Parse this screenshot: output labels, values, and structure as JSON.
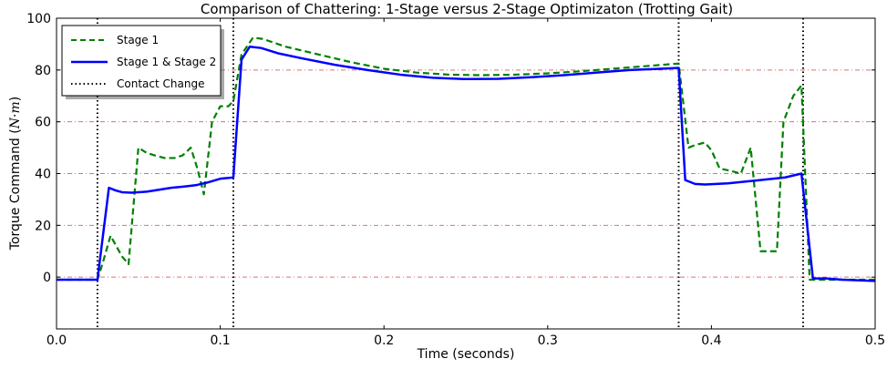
{
  "chart_data": {
    "type": "line",
    "title": "Comparison of Chattering: 1-Stage versus 2-Stage Optimizaton (Trotting Gait)",
    "xlabel": "Time (seconds)",
    "ylabel_text": "Torque Command (",
    "ylabel_unit": "N·m",
    "ylabel_close": ")",
    "xlim": [
      0.0,
      0.5
    ],
    "ylim": [
      -20,
      100
    ],
    "xticks": [
      0.0,
      0.1,
      0.2,
      0.3,
      0.4,
      0.5
    ],
    "xtick_labels": [
      "0.0",
      "0.1",
      "0.2",
      "0.3",
      "0.4",
      "0.5"
    ],
    "yticks": [
      0,
      20,
      40,
      60,
      80,
      100
    ],
    "ytick_labels": [
      "0",
      "20",
      "40",
      "60",
      "80",
      "100"
    ],
    "reference_lines_y": [
      0,
      20,
      40,
      60,
      80
    ],
    "legend_position": "top-left",
    "series": [
      {
        "name": "Stage 1",
        "color": "#008000",
        "style": "dashed",
        "x": [
          0.0,
          0.025,
          0.028,
          0.033,
          0.04,
          0.044,
          0.05,
          0.055,
          0.06,
          0.066,
          0.072,
          0.077,
          0.082,
          0.086,
          0.09,
          0.095,
          0.1,
          0.105,
          0.108,
          0.113,
          0.12,
          0.126,
          0.14,
          0.16,
          0.18,
          0.2,
          0.22,
          0.24,
          0.26,
          0.28,
          0.3,
          0.32,
          0.34,
          0.36,
          0.38,
          0.386,
          0.39,
          0.396,
          0.4,
          0.405,
          0.412,
          0.418,
          0.424,
          0.43,
          0.434,
          0.44,
          0.444,
          0.45,
          0.455,
          0.46,
          0.468,
          0.48,
          0.5
        ],
        "y": [
          -1,
          -1,
          5,
          16,
          8,
          5,
          50,
          48,
          47,
          46,
          46,
          47,
          50,
          42,
          32,
          60,
          66,
          66,
          68,
          86,
          92.5,
          92,
          89,
          86,
          83,
          80.5,
          79,
          78.2,
          78,
          78.2,
          78.7,
          79.5,
          80.5,
          81.5,
          82.5,
          50,
          51,
          52,
          49,
          42,
          41,
          40,
          50,
          10,
          10,
          10,
          60,
          70,
          74,
          -1,
          -1,
          -1,
          -1
        ]
      },
      {
        "name": "Stage 1 & Stage 2",
        "color": "#0000ff",
        "style": "solid",
        "x": [
          0.0,
          0.025,
          0.032,
          0.036,
          0.04,
          0.046,
          0.055,
          0.06,
          0.07,
          0.078,
          0.085,
          0.092,
          0.1,
          0.108,
          0.113,
          0.118,
          0.125,
          0.135,
          0.15,
          0.17,
          0.19,
          0.21,
          0.23,
          0.25,
          0.27,
          0.29,
          0.31,
          0.33,
          0.35,
          0.37,
          0.38,
          0.384,
          0.39,
          0.396,
          0.41,
          0.43,
          0.445,
          0.455,
          0.462,
          0.47,
          0.48,
          0.5
        ],
        "y": [
          -1,
          -1,
          34.5,
          33.5,
          32.8,
          32.6,
          33,
          33.5,
          34.5,
          35,
          35.5,
          36.5,
          38,
          38.5,
          84,
          89,
          88.5,
          86.5,
          84.5,
          82,
          80,
          78.2,
          77,
          76.5,
          76.6,
          77.2,
          78,
          79,
          80,
          80.5,
          80.8,
          37.5,
          36,
          35.8,
          36.2,
          37.5,
          38.5,
          40,
          -0.5,
          -0.5,
          -1,
          -1.5
        ]
      },
      {
        "name": "Contact Change",
        "color": "#000000",
        "style": "dotted",
        "x_positions": [
          0.025,
          0.108,
          0.38,
          0.456
        ]
      }
    ]
  }
}
